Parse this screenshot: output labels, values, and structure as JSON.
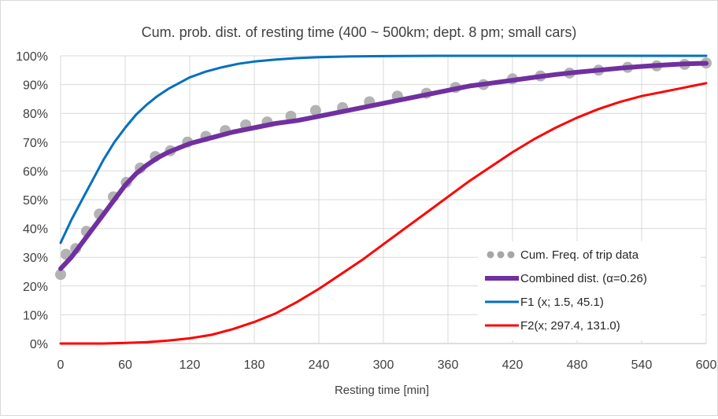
{
  "chart_data": {
    "type": "line",
    "title": "Cum. prob. dist. of resting time (400 ~ 500km; dept. 8 pm; small cars)",
    "xlabel": "Resting time [min]",
    "ylabel": "",
    "xlim": [
      0,
      600
    ],
    "ylim": [
      0,
      1
    ],
    "x_ticks": [
      "0",
      "60",
      "120",
      "180",
      "240",
      "300",
      "360",
      "420",
      "480",
      "540",
      "600"
    ],
    "y_ticks": [
      "0%",
      "10%",
      "20%",
      "30%",
      "40%",
      "50%",
      "60%",
      "70%",
      "80%",
      "90%",
      "100%"
    ],
    "grid": true,
    "legend_position": "bottom-right",
    "series": [
      {
        "name": "Cum. Freq. of trip data",
        "style": "dots",
        "color": "#a6a6a6",
        "x": [
          0,
          5,
          14,
          24,
          36,
          49,
          61,
          74,
          88,
          102,
          118,
          135,
          153,
          172,
          192,
          214,
          237,
          262,
          287,
          313,
          340,
          367,
          393,
          420,
          446,
          473,
          500,
          527,
          554,
          580,
          600
        ],
        "y": [
          0.24,
          0.31,
          0.33,
          0.39,
          0.45,
          0.51,
          0.56,
          0.61,
          0.65,
          0.67,
          0.7,
          0.72,
          0.74,
          0.76,
          0.77,
          0.79,
          0.81,
          0.82,
          0.84,
          0.86,
          0.87,
          0.89,
          0.9,
          0.92,
          0.93,
          0.94,
          0.95,
          0.96,
          0.965,
          0.97,
          0.975
        ]
      },
      {
        "name": "Combined dist. (α=0.26)",
        "style": "line",
        "color": "#7030a0",
        "x": [
          0,
          10,
          20,
          30,
          40,
          50,
          60,
          70,
          80,
          90,
          100,
          120,
          140,
          160,
          180,
          200,
          220,
          240,
          260,
          280,
          300,
          320,
          340,
          360,
          380,
          400,
          420,
          440,
          460,
          480,
          500,
          520,
          540,
          560,
          580,
          600
        ],
        "y": [
          0.26,
          0.3,
          0.35,
          0.4,
          0.45,
          0.5,
          0.55,
          0.59,
          0.62,
          0.645,
          0.665,
          0.695,
          0.715,
          0.735,
          0.75,
          0.765,
          0.775,
          0.79,
          0.805,
          0.82,
          0.835,
          0.85,
          0.865,
          0.88,
          0.895,
          0.905,
          0.915,
          0.925,
          0.935,
          0.943,
          0.95,
          0.957,
          0.963,
          0.968,
          0.972,
          0.974
        ]
      },
      {
        "name": "F1 (x; 1.5, 45.1)",
        "style": "line",
        "color": "#0070c0",
        "x": [
          0,
          10,
          20,
          30,
          40,
          50,
          60,
          70,
          80,
          90,
          100,
          110,
          120,
          135,
          150,
          165,
          180,
          200,
          220,
          240,
          270,
          300,
          350,
          400,
          500,
          600
        ],
        "y": [
          0.35,
          0.43,
          0.5,
          0.57,
          0.64,
          0.7,
          0.75,
          0.795,
          0.83,
          0.86,
          0.885,
          0.905,
          0.925,
          0.945,
          0.96,
          0.972,
          0.98,
          0.987,
          0.992,
          0.995,
          0.998,
          0.999,
          1.0,
          1.0,
          1.0,
          1.0
        ]
      },
      {
        "name": "F2(x;  297.4, 131.0)",
        "style": "line",
        "color": "#ff0000",
        "x": [
          0,
          40,
          60,
          80,
          100,
          120,
          140,
          160,
          180,
          200,
          220,
          240,
          260,
          280,
          300,
          320,
          340,
          360,
          380,
          400,
          420,
          440,
          460,
          480,
          500,
          520,
          540,
          560,
          580,
          600
        ],
        "y": [
          0,
          0.0,
          0.002,
          0.005,
          0.01,
          0.018,
          0.03,
          0.05,
          0.075,
          0.105,
          0.145,
          0.19,
          0.24,
          0.29,
          0.345,
          0.4,
          0.455,
          0.51,
          0.565,
          0.615,
          0.665,
          0.71,
          0.75,
          0.785,
          0.815,
          0.84,
          0.86,
          0.875,
          0.89,
          0.905
        ]
      }
    ]
  }
}
